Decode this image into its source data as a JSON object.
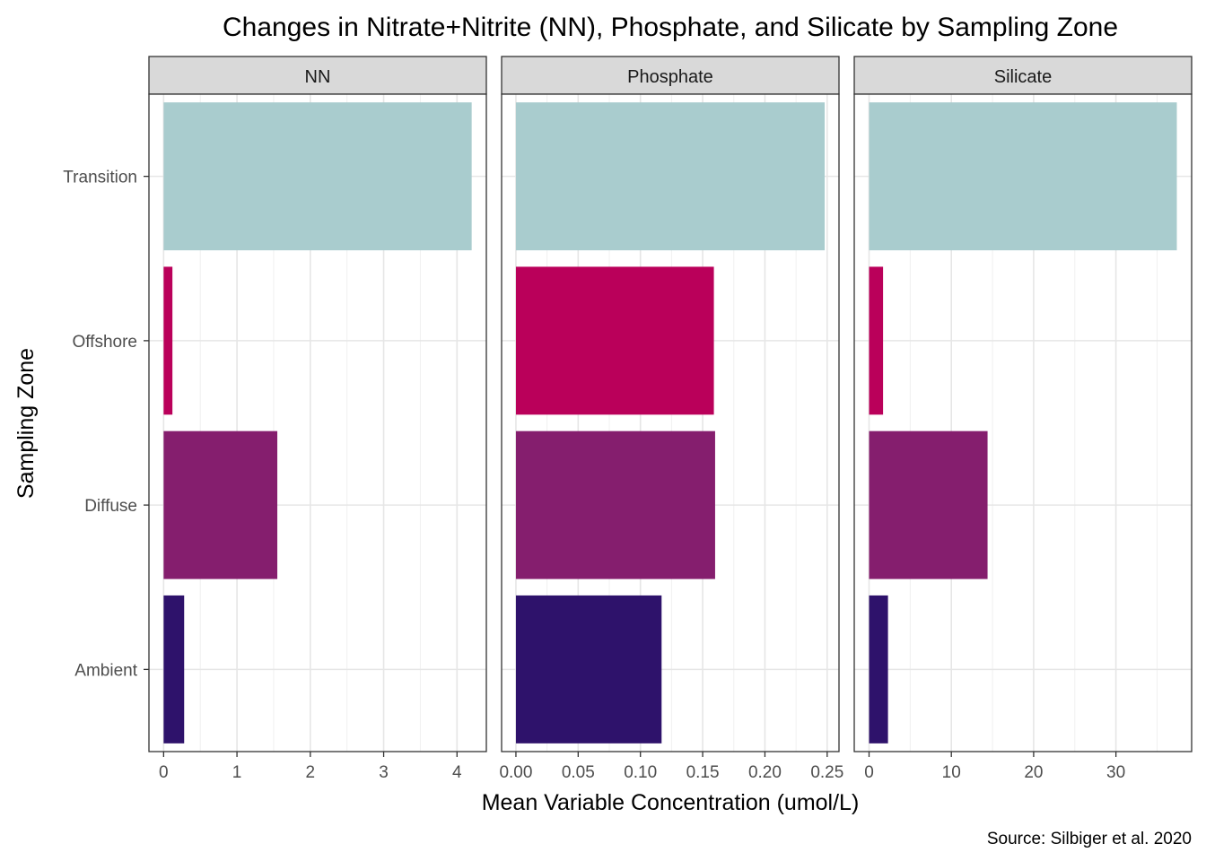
{
  "chart_data": {
    "type": "bar",
    "orientation": "horizontal",
    "title": "Changes in Nitrate+Nitrite (NN), Phosphate, and Silicate by Sampling Zone",
    "xlabel": "Mean Variable Concentration (umol/L)",
    "ylabel": "Sampling Zone",
    "caption": "Source: Silbiger et al. 2020",
    "categories": [
      "Ambient",
      "Diffuse",
      "Offshore",
      "Transition"
    ],
    "category_colors": [
      "#2E126B",
      "#851E6E",
      "#BA005A",
      "#A9CCCE"
    ],
    "grid": true,
    "legend": "none",
    "facets": [
      {
        "name": "NN",
        "values": [
          0.28,
          1.55,
          0.12,
          4.2
        ],
        "xlim": [
          -0.2,
          4.4
        ],
        "ticks": [
          0,
          1,
          2,
          3,
          4
        ],
        "tick_labels": [
          "0",
          "1",
          "2",
          "3",
          "4"
        ]
      },
      {
        "name": "Phosphate",
        "values": [
          0.117,
          0.16,
          0.159,
          0.248
        ],
        "xlim": [
          -0.0115,
          0.2595
        ],
        "ticks": [
          0,
          0.05,
          0.1,
          0.15,
          0.2,
          0.25
        ],
        "tick_labels": [
          "0.00",
          "0.05",
          "0.10",
          "0.15",
          "0.20",
          "0.25"
        ]
      },
      {
        "name": "Silicate",
        "values": [
          2.3,
          14.4,
          1.7,
          37.4
        ],
        "xlim": [
          -1.8,
          39.2
        ],
        "ticks": [
          0,
          10,
          20,
          30
        ],
        "tick_labels": [
          "0",
          "10",
          "20",
          "30"
        ]
      }
    ]
  }
}
